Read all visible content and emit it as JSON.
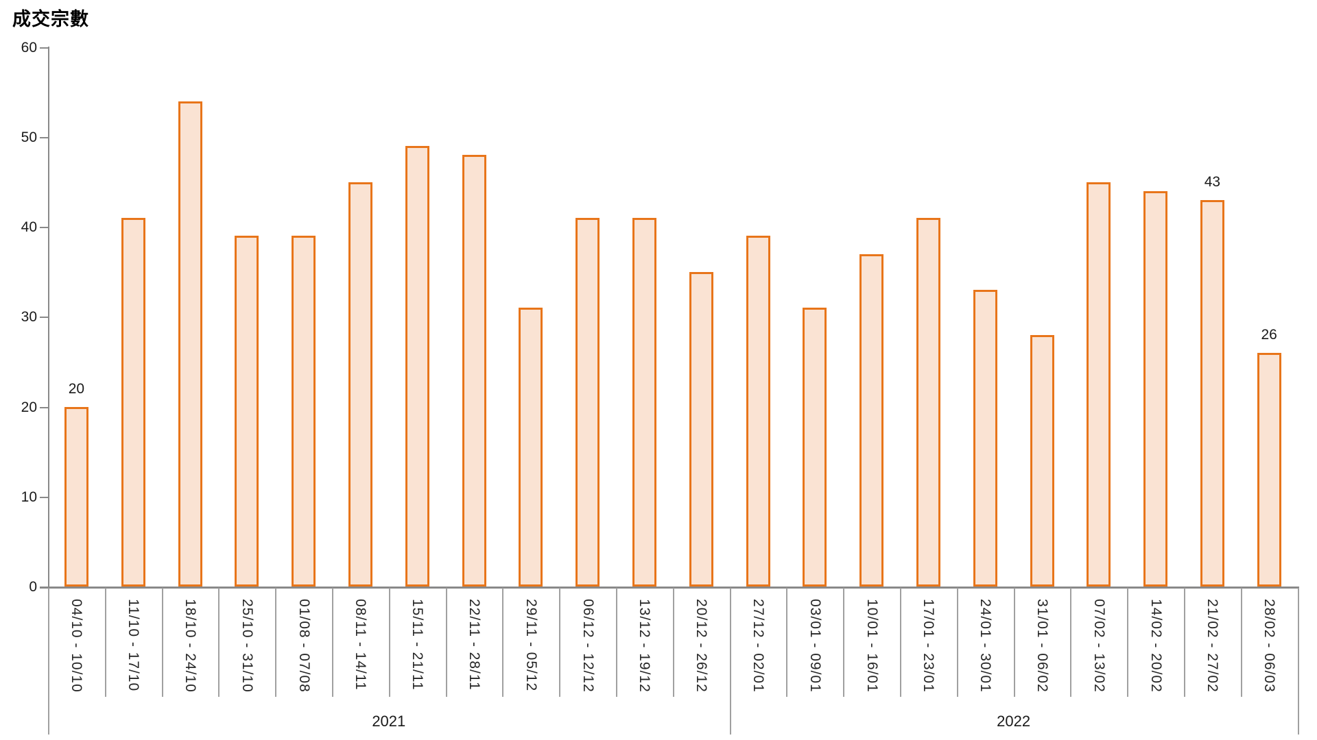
{
  "header": {
    "title": "成交宗數"
  },
  "chart_data": {
    "type": "bar",
    "title": "成交宗數",
    "categories": [
      "04/10 - 10/10",
      "11/10 - 17/10",
      "18/10 - 24/10",
      "25/10 - 31/10",
      "01/08 - 07/08",
      "08/11 - 14/11",
      "15/11 - 21/11",
      "22/11 - 28/11",
      "29/11 - 05/12",
      "06/12 - 12/12",
      "13/12 - 19/12",
      "20/12 - 26/12",
      "27/12 - 02/01",
      "03/01 - 09/01",
      "10/01 - 16/01",
      "17/01 - 23/01",
      "24/01 - 30/01",
      "31/01 - 06/02",
      "07/02 - 13/02",
      "14/02 - 20/02",
      "21/02 - 27/02",
      "28/02 - 06/03"
    ],
    "values": [
      20,
      41,
      54,
      39,
      39,
      45,
      49,
      48,
      31,
      41,
      41,
      35,
      39,
      31,
      37,
      41,
      33,
      28,
      45,
      44,
      43,
      26
    ],
    "labeled_indices": [
      0,
      20,
      21
    ],
    "data_labels": [
      "20",
      "43",
      "26"
    ],
    "xlabel": "",
    "ylabel": "成交宗數",
    "ylim": [
      0,
      60
    ],
    "ytick_step": 10,
    "grid": false,
    "legend": "none",
    "year_groups": [
      {
        "label": "2021",
        "start": 0,
        "count": 12
      },
      {
        "label": "2022",
        "start": 12,
        "count": 10
      }
    ],
    "colors": {
      "bar_fill": "#FAE3D3",
      "bar_border": "#E8751A",
      "axis_line": "#898989",
      "separator_line": "#A0A0A0",
      "text": "#1A1A1A"
    }
  }
}
